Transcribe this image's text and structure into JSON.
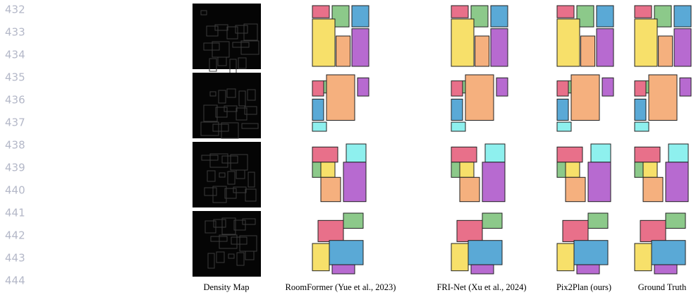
{
  "line_numbers": [
    "432",
    "433",
    "434",
    "435",
    "436",
    "437",
    "438",
    "439",
    "440",
    "441",
    "442",
    "443",
    "444"
  ],
  "captions": [
    "Density Map",
    "RoomFormer (Yue et al., 2023)",
    "FRI-Net (Xu et al., 2024)",
    "Pix2Plan (ours)",
    "Ground Truth"
  ]
}
